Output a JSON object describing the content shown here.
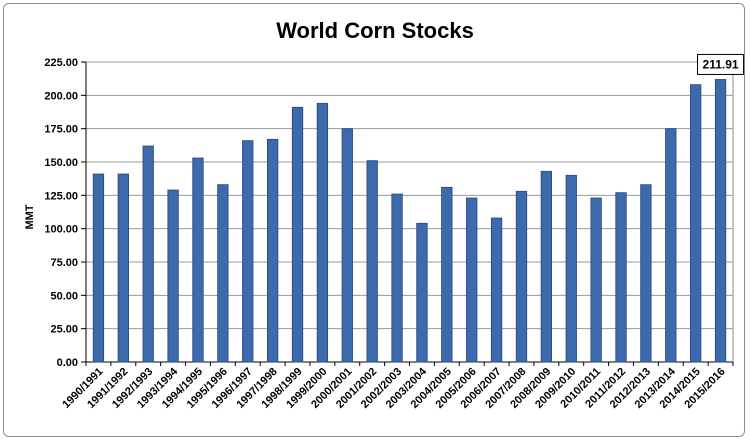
{
  "chart_data": {
    "type": "bar",
    "title": "World Corn Stocks",
    "xlabel": "",
    "ylabel": "MMT",
    "ylim": [
      0,
      225
    ],
    "y_ticks": [
      "0.00",
      "25.00",
      "50.00",
      "75.00",
      "100.00",
      "125.00",
      "150.00",
      "175.00",
      "200.00",
      "225.00"
    ],
    "grid": true,
    "legend": "none",
    "categories": [
      "1990/1991",
      "1991/1992",
      "1992/1993",
      "1993/1994",
      "1994/1995",
      "1995/1996",
      "1996/1997",
      "1997/1998",
      "1998/1999",
      "1999/2000",
      "2000/2001",
      "2001/2002",
      "2002/2003",
      "2003/2004",
      "2004/2005",
      "2005/2006",
      "2006/2007",
      "2007/2008",
      "2008/2009",
      "2009/2010",
      "2010/2011",
      "2011/2012",
      "2012/2013",
      "2013/2014",
      "2014/2015",
      "2015/2016"
    ],
    "values": [
      141,
      141,
      162,
      129,
      153,
      133,
      166,
      167,
      191,
      194,
      175,
      151,
      126,
      104,
      131,
      123,
      108,
      128,
      143,
      140,
      123,
      127,
      133,
      175,
      208,
      211.91
    ],
    "annotation": {
      "category": "2015/2016",
      "text": "211.91"
    },
    "bar_color": "#3d6aad",
    "bar_edge_color": "#27487a"
  }
}
